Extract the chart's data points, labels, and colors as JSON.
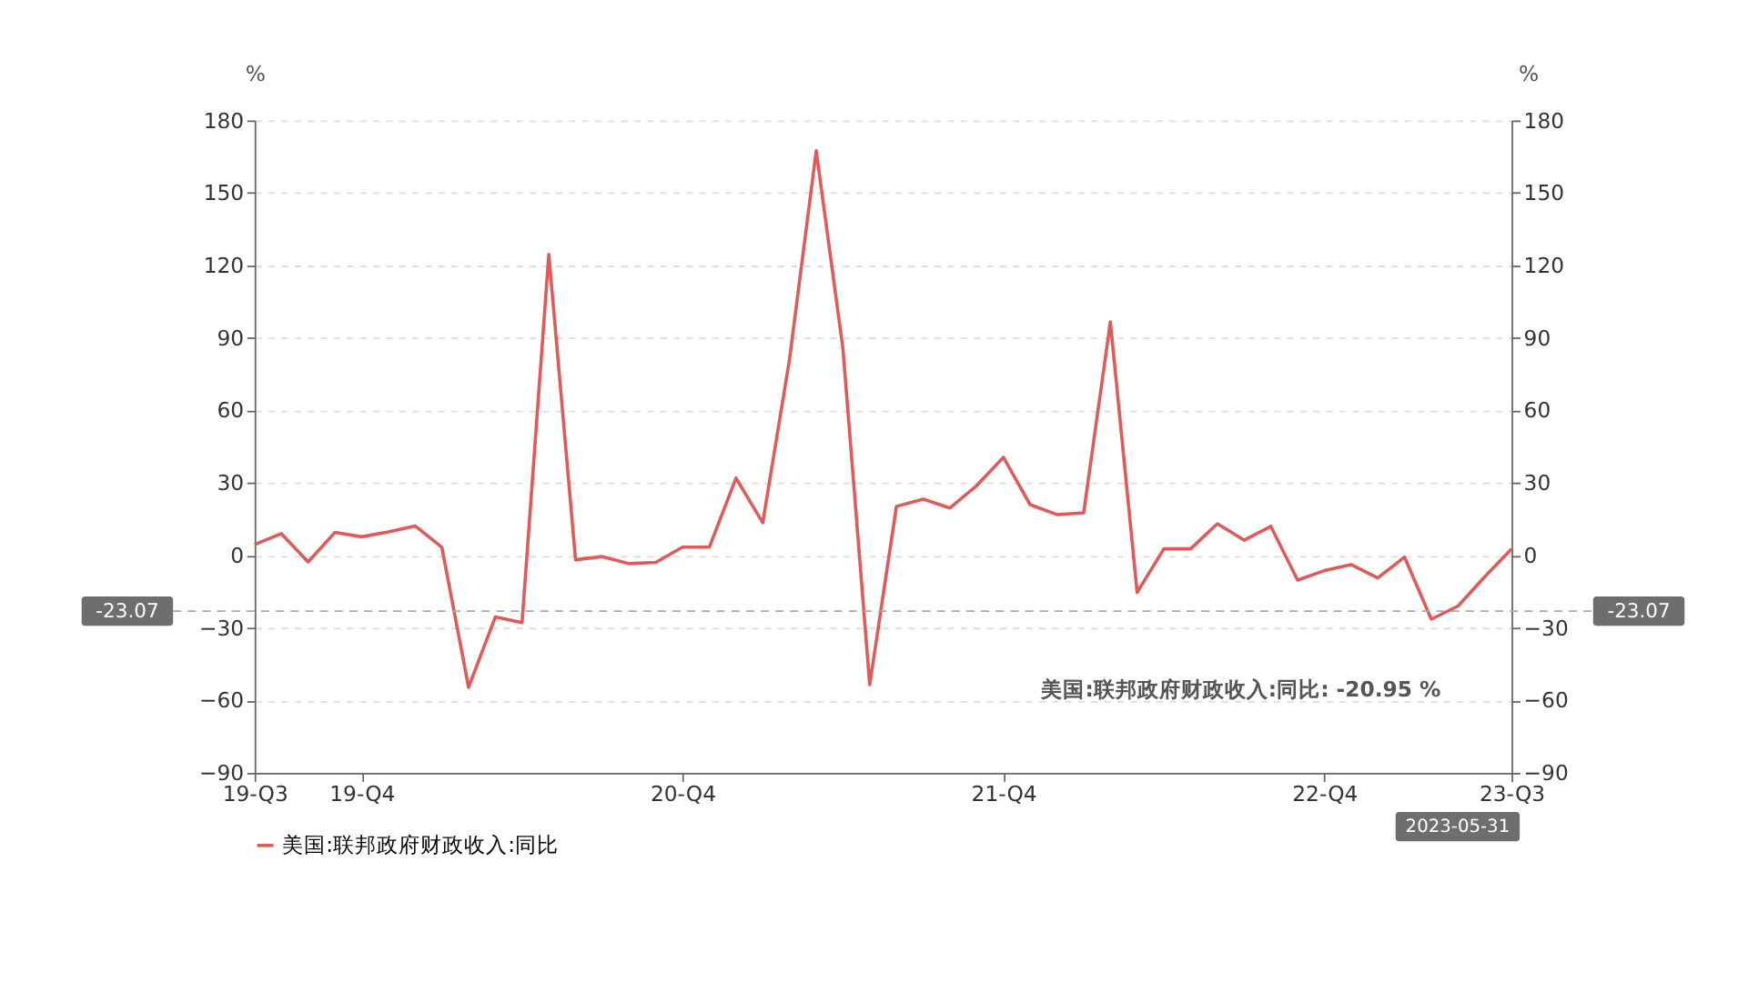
{
  "chart_data": {
    "type": "line",
    "categories": [
      "19-Q3",
      null,
      null,
      null,
      "19-Q4",
      null,
      null,
      null,
      null,
      null,
      null,
      null,
      null,
      null,
      null,
      null,
      "20-Q4",
      null,
      null,
      null,
      null,
      null,
      null,
      null,
      null,
      null,
      null,
      null,
      "21-Q4",
      null,
      null,
      null,
      null,
      null,
      null,
      null,
      null,
      null,
      null,
      null,
      "22-Q4",
      null,
      null,
      null,
      null,
      null,
      null,
      "23-Q3"
    ],
    "series": [
      {
        "name": "美国:联邦政府财政收入:同比",
        "color": "#e05a5a",
        "values": [
          4.5,
          9,
          -2.7,
          9.5,
          7.7,
          9.7,
          12.2,
          3.4,
          -54.6,
          -25.5,
          -27.8,
          124.6,
          -1.8,
          -0.5,
          -3.4,
          -2.9,
          3.4,
          3.4,
          32,
          13.5,
          81,
          167.5,
          85.4,
          -53.5,
          20.3,
          23.3,
          19.6,
          28.9,
          40.6,
          21,
          16.9,
          17.6,
          96.6,
          -15.3,
          2.7,
          2.7,
          13.1,
          6.3,
          12,
          -10.2,
          -6.3,
          -3.8,
          -9.3,
          -0.7,
          -26.4,
          -20.95,
          -8.8,
          2.7
        ]
      }
    ],
    "ylabel": "%",
    "y2label": "%",
    "ylim": [
      -90,
      180
    ],
    "yticks": [
      -90,
      -60,
      -30,
      0,
      30,
      60,
      90,
      120,
      150,
      180
    ],
    "y2lim": [
      -90,
      180
    ],
    "y2ticks": [
      -90,
      -60,
      -30,
      0,
      30,
      60,
      90,
      120,
      150,
      180
    ],
    "ref_lines": [
      {
        "axis": "y",
        "value": -23.07,
        "label": "-23.07",
        "color": "#aaaaaa",
        "line_style": "dashed"
      }
    ],
    "annotations": [
      "2023-05-31",
      "美国:联邦政府财政收入:同比: -20.95  %"
    ],
    "grid": "y",
    "legend": "bottom",
    "line_style": "solid",
    "marker": "none"
  }
}
